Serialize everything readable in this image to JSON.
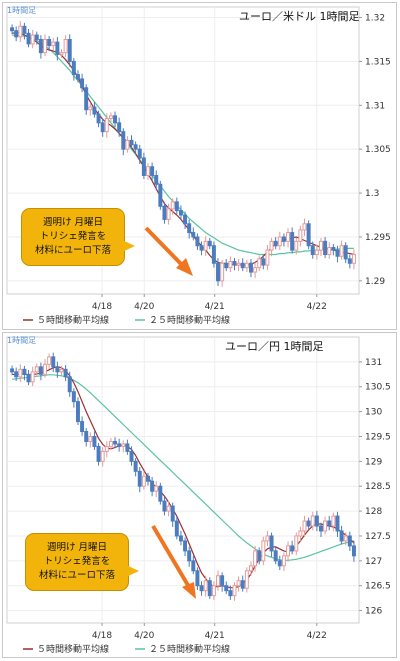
{
  "chart_data": [
    {
      "type": "candlestick",
      "title": "ユーロ／米ドル 1時間足",
      "timeframe_label": "1時間足",
      "x_ticks": [
        "4/18",
        "4/20",
        "4/21",
        "4/22"
      ],
      "y_ticks": [
        "1.32",
        "1.315",
        "1.31",
        "1.305",
        "1.3",
        "1.295",
        "1.29"
      ],
      "ylim": [
        1.2885,
        1.3212
      ],
      "grid": true,
      "legend": [
        "５時間移動平均線",
        "２５時間移動平均線"
      ],
      "legend_position": "bottom",
      "colors": {
        "up": "#e69a9a",
        "down": "#4a7cbf",
        "ma5": "#9a2f2f",
        "ma25": "#5ac3a0"
      },
      "annotation": {
        "lines": [
          "週明け 月曜日",
          "トリシェ発言を",
          "材料にユーロ下落"
        ]
      },
      "close": [
        1.3185,
        1.3178,
        1.319,
        1.3182,
        1.317,
        1.318,
        1.3175,
        1.316,
        1.3175,
        1.3168,
        1.3172,
        1.3158,
        1.316,
        1.3175,
        1.315,
        1.3135,
        1.313,
        1.312,
        1.3095,
        1.3098,
        1.309,
        1.308,
        1.307,
        1.3085,
        1.3088,
        1.308,
        1.307,
        1.305,
        1.306,
        1.3055,
        1.305,
        1.304,
        1.302,
        1.303,
        1.302,
        1.301,
        1.2985,
        1.297,
        1.2982,
        1.299,
        1.298,
        1.2975,
        1.2965,
        1.2955,
        1.295,
        1.294,
        1.2935,
        1.2945,
        1.294,
        1.292,
        1.29,
        1.292,
        1.2915,
        1.2922,
        1.2918,
        1.292,
        1.2915,
        1.292,
        1.291,
        1.2915,
        1.2925,
        1.2918,
        1.2935,
        1.2945,
        1.294,
        1.295,
        1.2945,
        1.2955,
        1.2935,
        1.2945,
        1.2958,
        1.2965,
        1.294,
        1.293,
        1.2935,
        1.2945,
        1.293,
        1.2938,
        1.2935,
        1.2928,
        1.294,
        1.2925,
        1.292,
        1.293
      ],
      "ma5": [
        1.3182,
        1.3183,
        1.3182,
        1.318,
        1.3178,
        1.3175,
        1.3172,
        1.3168,
        1.3165,
        1.3163,
        1.3162,
        1.316,
        1.3157,
        1.3152,
        1.3146,
        1.314,
        1.3132,
        1.3122,
        1.3112,
        1.3104,
        1.3096,
        1.309,
        1.3084,
        1.308,
        1.3077,
        1.3073,
        1.3068,
        1.3063,
        1.3058,
        1.3052,
        1.3045,
        1.3037,
        1.303,
        1.3022,
        1.3014,
        1.3005,
        1.2996,
        1.2988,
        1.2983,
        1.2979,
        1.2975,
        1.297,
        1.2964,
        1.2958,
        1.2951,
        1.2945,
        1.294,
        1.2935,
        1.2929,
        1.2924,
        1.2921,
        1.292,
        1.292,
        1.2919,
        1.2918,
        1.2918,
        1.2918,
        1.2918,
        1.2919,
        1.2921,
        1.2924,
        1.2928,
        1.2933,
        1.2938,
        1.2942,
        1.2944,
        1.2946,
        1.2948,
        1.2949,
        1.295,
        1.2948,
        1.2946,
        1.2944,
        1.2942,
        1.294,
        1.2938,
        1.2937,
        1.2936,
        1.2935,
        1.2934,
        1.2933,
        1.2932,
        1.2931,
        1.293
      ],
      "ma25": [
        1.318,
        1.318,
        1.3179,
        1.3179,
        1.3178,
        1.3176,
        1.3174,
        1.3171,
        1.3168,
        1.3164,
        1.316,
        1.3155,
        1.315,
        1.3145,
        1.314,
        1.3134,
        1.3128,
        1.3122,
        1.3116,
        1.311,
        1.3104,
        1.3098,
        1.3092,
        1.3086,
        1.308,
        1.3074,
        1.3068,
        1.3062,
        1.3056,
        1.305,
        1.3044,
        1.3038,
        1.3032,
        1.3026,
        1.302,
        1.3014,
        1.3008,
        1.3002,
        1.2996,
        1.2991,
        1.2986,
        1.2981,
        1.2976,
        1.2971,
        1.2967,
        1.2963,
        1.2959,
        1.2955,
        1.2952,
        1.2949,
        1.2946,
        1.2943,
        1.2941,
        1.2939,
        1.2937,
        1.2935,
        1.2934,
        1.2933,
        1.2932,
        1.2931,
        1.293,
        1.293,
        1.293,
        1.293,
        1.293,
        1.2931,
        1.2931,
        1.2932,
        1.2932,
        1.2933,
        1.2933,
        1.2934,
        1.2934,
        1.2935,
        1.2935,
        1.2935,
        1.2936,
        1.2936,
        1.2936,
        1.2936,
        1.2937,
        1.2937,
        1.2937,
        1.2937
      ]
    },
    {
      "type": "candlestick",
      "title": "ユーロ／円 1時間足",
      "timeframe_label": "1時間足",
      "x_ticks": [
        "4/18",
        "4/20",
        "4/21",
        "4/22"
      ],
      "y_ticks": [
        "131",
        "130.5",
        "130",
        "129.5",
        "129",
        "128.5",
        "128",
        "127.5",
        "127",
        "126.5",
        "126"
      ],
      "ylim": [
        125.75,
        131.5
      ],
      "grid": true,
      "legend": [
        "５時間移動平均線",
        "２５時間移動平均線"
      ],
      "legend_position": "bottom",
      "colors": {
        "up": "#e69a9a",
        "down": "#4a7cbf",
        "ma5": "#9a2f2f",
        "ma25": "#5ac3a0"
      },
      "annotation": {
        "lines": [
          "週明け 月曜日",
          "トリシェ発言を",
          "材料にユーロ下落"
        ]
      },
      "close": [
        130.8,
        130.7,
        130.85,
        130.75,
        130.6,
        130.8,
        130.9,
        130.75,
        130.95,
        131.1,
        130.9,
        130.8,
        130.85,
        130.7,
        130.4,
        130.2,
        129.8,
        129.6,
        129.4,
        129.5,
        129.3,
        129.0,
        129.2,
        129.3,
        129.4,
        129.35,
        129.3,
        129.35,
        129.2,
        129.0,
        128.8,
        128.5,
        128.7,
        128.6,
        128.4,
        128.5,
        128.2,
        128.0,
        128.1,
        127.8,
        127.5,
        127.4,
        127.2,
        127.0,
        126.8,
        126.5,
        126.4,
        126.6,
        126.3,
        126.5,
        126.7,
        126.5,
        126.4,
        126.3,
        126.5,
        126.6,
        126.45,
        126.8,
        126.9,
        127.2,
        127.0,
        127.4,
        127.5,
        127.2,
        127.0,
        126.9,
        127.1,
        127.3,
        127.2,
        127.5,
        127.6,
        127.8,
        127.7,
        127.9,
        127.7,
        127.6,
        127.8,
        127.7,
        127.9,
        127.6,
        127.4,
        127.5,
        127.3,
        127.1
      ],
      "ma5": [
        130.75,
        130.74,
        130.76,
        130.75,
        130.74,
        130.74,
        130.76,
        130.77,
        130.8,
        130.84,
        130.88,
        130.9,
        130.88,
        130.82,
        130.72,
        130.58,
        130.4,
        130.2,
        130.0,
        129.82,
        129.64,
        129.46,
        129.34,
        129.27,
        129.25,
        129.28,
        129.31,
        129.33,
        129.3,
        129.24,
        129.12,
        128.96,
        128.82,
        128.68,
        128.56,
        128.48,
        128.4,
        128.3,
        128.18,
        128.04,
        127.9,
        127.72,
        127.54,
        127.34,
        127.14,
        126.94,
        126.76,
        126.64,
        126.54,
        126.48,
        126.48,
        126.5,
        126.48,
        126.46,
        126.46,
        126.48,
        126.54,
        126.62,
        126.74,
        126.9,
        127.04,
        127.16,
        127.24,
        127.28,
        127.28,
        127.24,
        127.2,
        127.18,
        127.22,
        127.3,
        127.4,
        127.52,
        127.62,
        127.7,
        127.74,
        127.74,
        127.72,
        127.7,
        127.68,
        127.64,
        127.58,
        127.52,
        127.44,
        127.36
      ],
      "ma25": [
        130.65,
        130.66,
        130.67,
        130.68,
        130.69,
        130.7,
        130.71,
        130.72,
        130.73,
        130.74,
        130.74,
        130.73,
        130.72,
        130.7,
        130.67,
        130.63,
        130.58,
        130.52,
        130.45,
        130.38,
        130.3,
        130.22,
        130.14,
        130.06,
        129.98,
        129.9,
        129.82,
        129.74,
        129.66,
        129.58,
        129.5,
        129.42,
        129.34,
        129.26,
        129.18,
        129.1,
        129.02,
        128.94,
        128.86,
        128.78,
        128.7,
        128.62,
        128.54,
        128.46,
        128.38,
        128.3,
        128.22,
        128.14,
        128.06,
        127.98,
        127.9,
        127.82,
        127.74,
        127.66,
        127.58,
        127.5,
        127.43,
        127.36,
        127.3,
        127.24,
        127.19,
        127.14,
        127.1,
        127.07,
        127.04,
        127.02,
        127.01,
        127.01,
        127.02,
        127.03,
        127.05,
        127.07,
        127.1,
        127.13,
        127.16,
        127.19,
        127.22,
        127.25,
        127.28,
        127.31,
        127.34,
        127.36,
        127.38,
        127.4
      ]
    }
  ]
}
